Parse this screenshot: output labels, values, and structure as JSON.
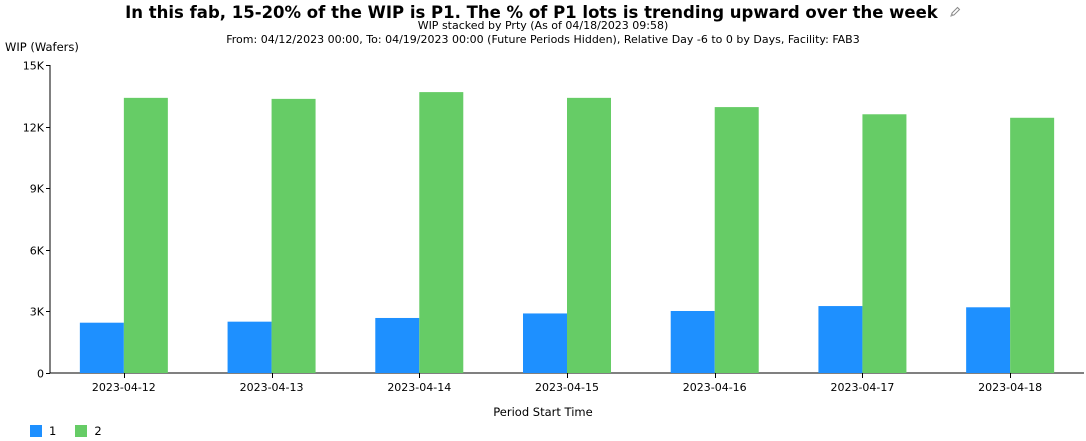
{
  "header": {
    "title": "In this fab, 15-20% of the WIP is P1. The % of P1 lots is trending upward over the week",
    "subtitle1": "WIP stacked by Prty (As of 04/18/2023 09:58)",
    "subtitle2": "From: 04/12/2023 00:00, To: 04/19/2023 00:00 (Future Periods Hidden), Relative Day -6 to 0 by Days, Facility: FAB3"
  },
  "icons": {
    "edit": "pencil-icon"
  },
  "chart_data": {
    "type": "bar",
    "title": "In this fab, 15-20% of the WIP is P1. The % of P1 lots is trending upward over the week",
    "xlabel": "Period Start Time",
    "ylabel": "WIP (Wafers)",
    "ylim": [
      0,
      15000
    ],
    "yticks": [
      0,
      3000,
      6000,
      9000,
      12000,
      15000
    ],
    "ytick_labels": [
      "0",
      "3K",
      "6K",
      "9K",
      "12K",
      "15K"
    ],
    "categories": [
      "2023-04-12",
      "2023-04-13",
      "2023-04-14",
      "2023-04-15",
      "2023-04-16",
      "2023-04-17",
      "2023-04-18"
    ],
    "series": [
      {
        "name": "1",
        "color": "#1e90ff",
        "values": [
          2450,
          2500,
          2680,
          2900,
          3020,
          3260,
          3200
        ]
      },
      {
        "name": "2",
        "color": "#66cc66",
        "values": [
          13400,
          13350,
          13680,
          13400,
          12950,
          12600,
          12430
        ]
      }
    ],
    "grid": false,
    "legend": "bottom-left"
  }
}
